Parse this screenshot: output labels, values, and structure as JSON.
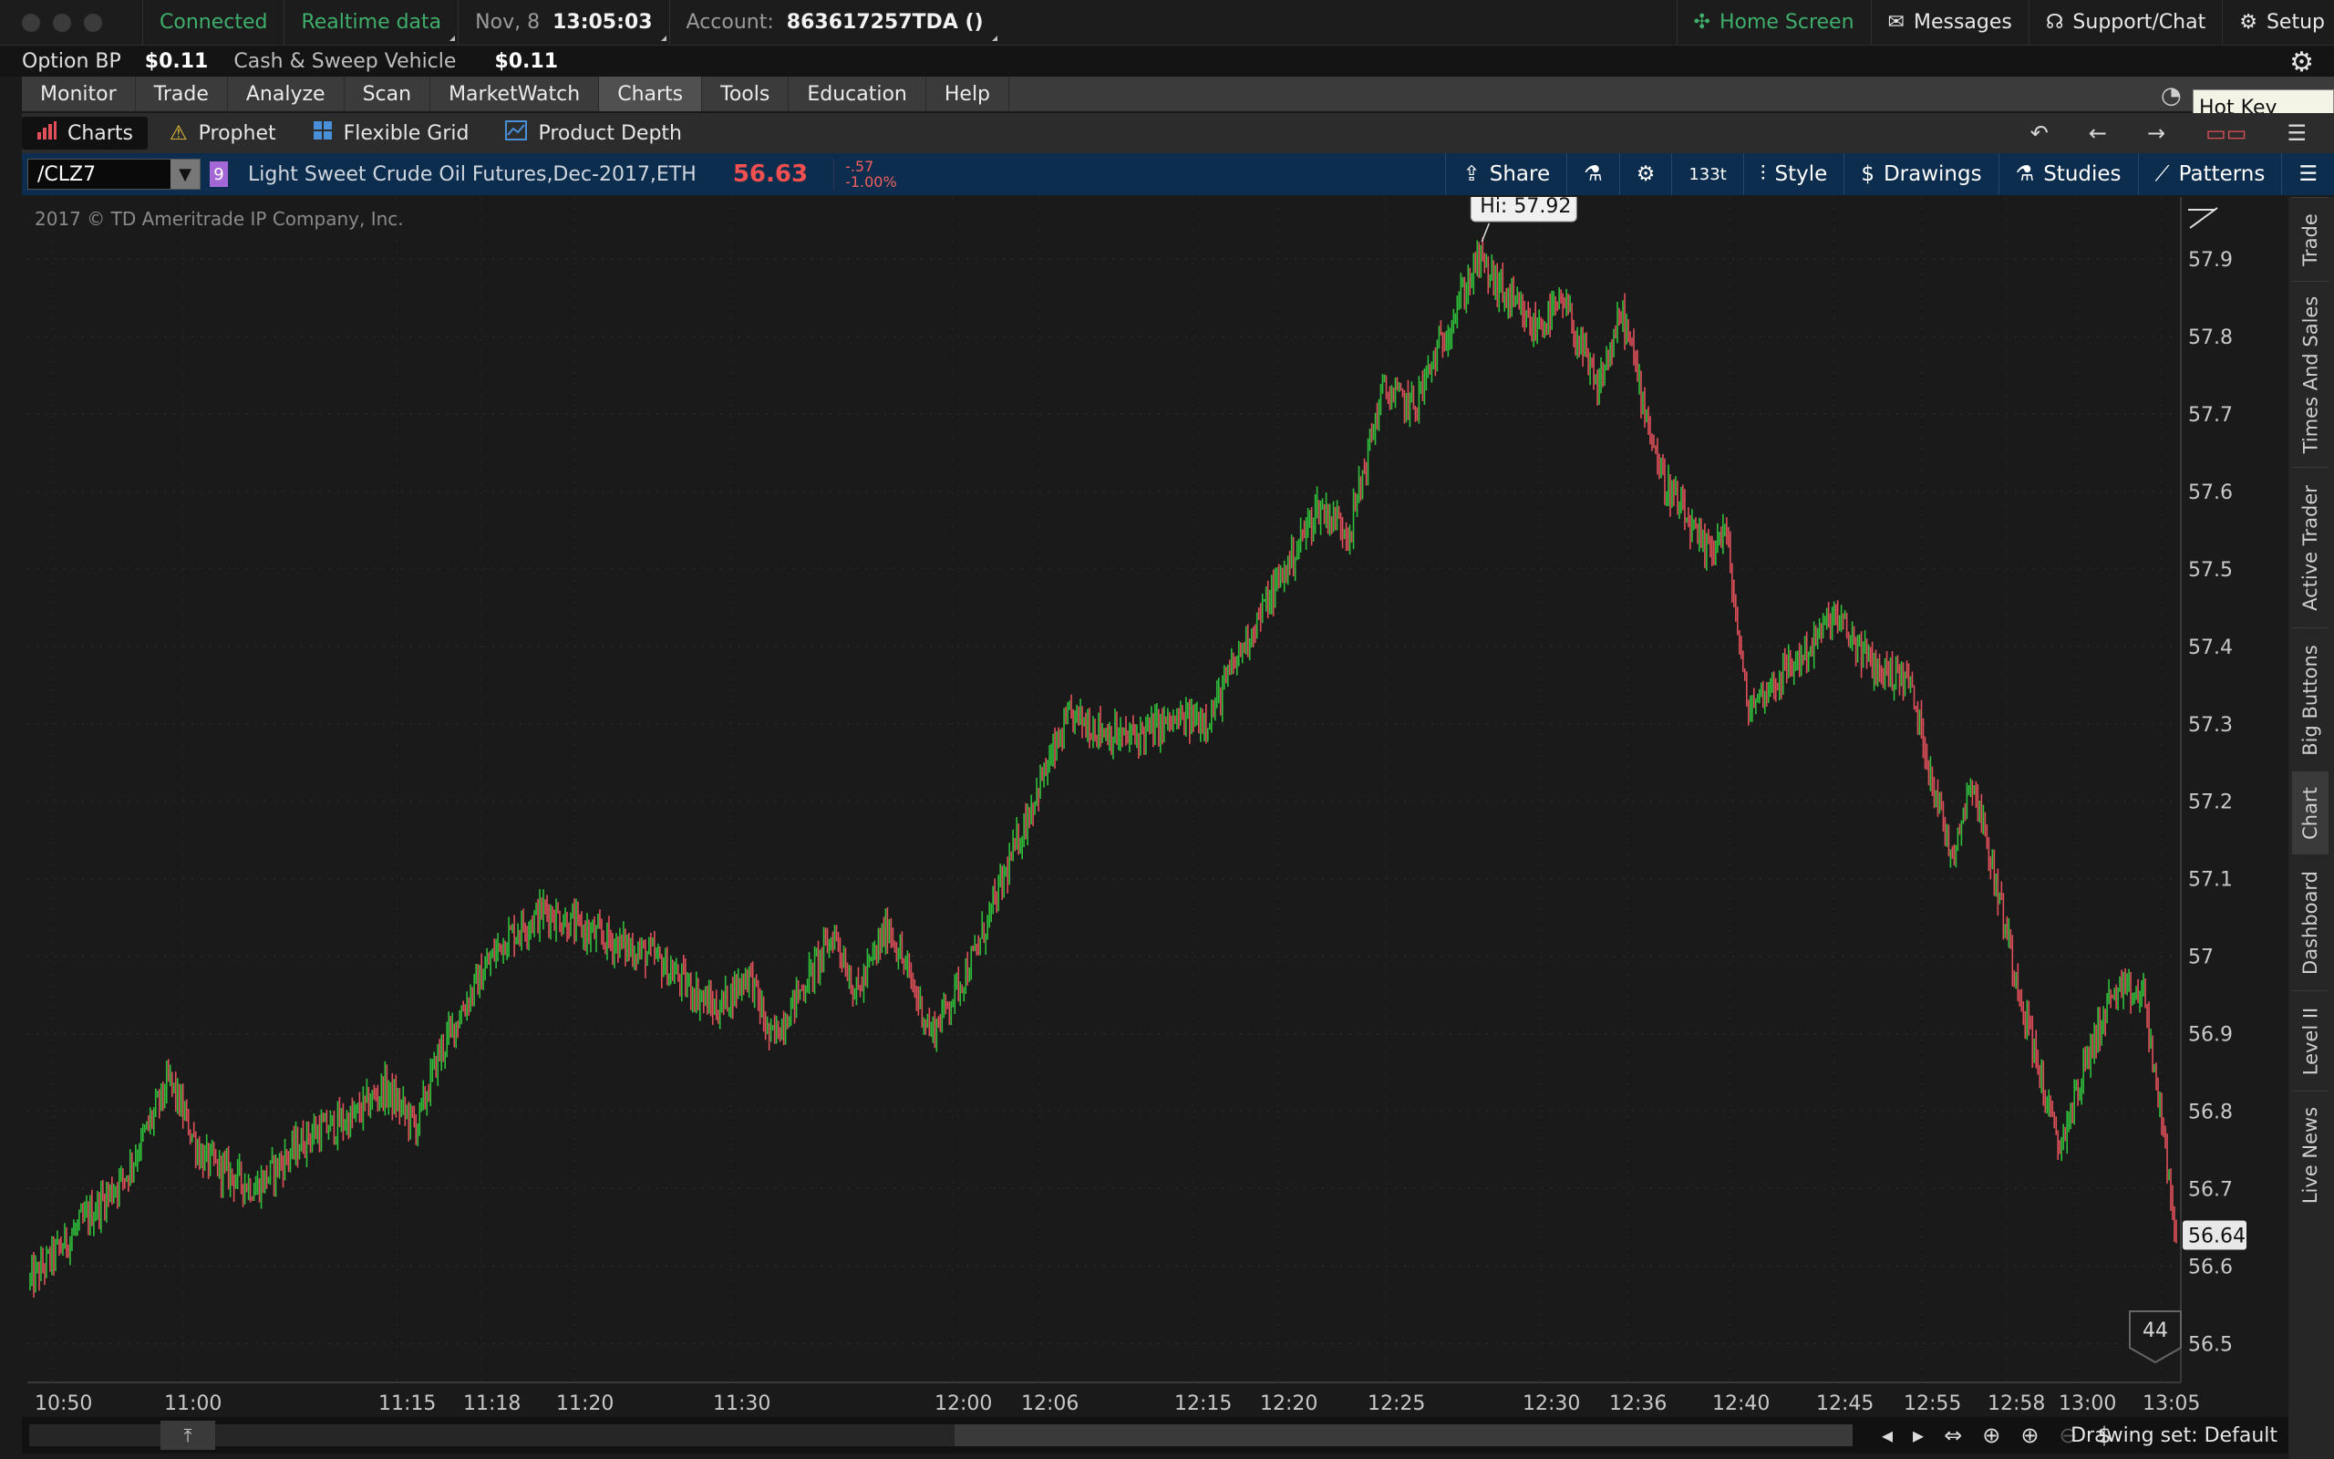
{
  "status_bar": {
    "connection": "Connected",
    "data_mode": "Realtime data",
    "date": "Nov, 8",
    "time": "13:05:03",
    "account_label": "Account:",
    "account_value": "863617257TDA ()",
    "right": [
      {
        "label": "Home Screen",
        "icon": "home-icon",
        "color": "#3fae6b"
      },
      {
        "label": "Messages",
        "icon": "envelope-icon"
      },
      {
        "label": "Support/Chat",
        "icon": "headset-icon"
      },
      {
        "label": "Setup",
        "icon": "gear-icon"
      }
    ]
  },
  "balances": {
    "option_bp_label": "Option BP",
    "option_bp_value": "$0.11",
    "cash_label": "Cash & Sweep Vehicle",
    "cash_value": "$0.11"
  },
  "main_menu": [
    "Monitor",
    "Trade",
    "Analyze",
    "Scan",
    "MarketWatch",
    "Charts",
    "Tools",
    "Education",
    "Help"
  ],
  "main_menu_active": "Charts",
  "tooltip": "Hot Key Setup",
  "sub_tabs": [
    {
      "label": "Charts",
      "icon": "bar-chart-icon",
      "active": true
    },
    {
      "label": "Prophet",
      "icon": "warning-triangle-icon"
    },
    {
      "label": "Flexible Grid",
      "icon": "grid-icon"
    },
    {
      "label": "Product Depth",
      "icon": "depth-chart-icon"
    }
  ],
  "chart_header": {
    "symbol": "/CLZ7",
    "link_badge": "9",
    "description": "Light Sweet Crude Oil Futures,Dec-2017,ETH",
    "last_price": "56.63",
    "net_change": "-.57",
    "pct_change": "-1.00%",
    "tools": [
      {
        "label": "Share",
        "icon": "share-icon"
      },
      {
        "label": "",
        "icon": "flask-icon"
      },
      {
        "label": "",
        "icon": "gear-icon"
      },
      {
        "label": "133t",
        "icon": "aggregation-icon"
      },
      {
        "label": "Style",
        "icon": "candle-icon"
      },
      {
        "label": "Drawings",
        "icon": "drawings-icon"
      },
      {
        "label": "Studies",
        "icon": "flask-icon"
      },
      {
        "label": "Patterns",
        "icon": "pattern-icon"
      }
    ]
  },
  "copyright": "2017 © TD Ameritrade IP Company, Inc.",
  "side_tabs": [
    "Trade",
    "Times And Sales",
    "Active Trader",
    "Big Buttons",
    "Chart",
    "Dashboard",
    "Level II",
    "Live News"
  ],
  "side_tab_active": "Chart",
  "bottom_bar": {
    "drawing_set": "Drawing set: Default"
  },
  "chart_data": {
    "type": "ohlc-bar",
    "instrument": "/CLZ7",
    "ylim": [
      56.45,
      57.98
    ],
    "y_ticks": [
      56.5,
      56.6,
      56.7,
      56.8,
      56.9,
      57,
      57.1,
      57.2,
      57.3,
      57.4,
      57.5,
      57.6,
      57.7,
      57.8,
      57.9
    ],
    "y_tick_labels": [
      "56.5",
      "56.6",
      "56.7",
      "56.8",
      "56.9",
      "57",
      "57.1",
      "57.2",
      "57.3",
      "57.4",
      "57.5",
      "57.6",
      "57.7",
      "57.8",
      "57.9"
    ],
    "x_ticks": [
      "10:50",
      "11:00",
      "11:15",
      "11:18",
      "11:20",
      "11:30",
      "12:00",
      "12:06",
      "12:15",
      "12:20",
      "12:25",
      "12:30",
      "12:36",
      "12:40",
      "12:45",
      "12:55",
      "12:58",
      "13:00",
      "13:05"
    ],
    "high_label": "Hi: 57.92",
    "high_value": 57.92,
    "last_label": "56.64",
    "last_value": 56.64,
    "bubble_count": "44",
    "grid": true,
    "up_color": "#2fbf3a",
    "down_color": "#e0505a",
    "price_path": [
      [
        0,
        56.58
      ],
      [
        0.045,
        56.72
      ],
      [
        0.065,
        56.84
      ],
      [
        0.08,
        56.74
      ],
      [
        0.105,
        56.7
      ],
      [
        0.13,
        56.77
      ],
      [
        0.15,
        56.79
      ],
      [
        0.165,
        56.83
      ],
      [
        0.18,
        56.78
      ],
      [
        0.19,
        56.87
      ],
      [
        0.205,
        56.95
      ],
      [
        0.22,
        57.02
      ],
      [
        0.24,
        57.06
      ],
      [
        0.26,
        57.03
      ],
      [
        0.29,
        57.0
      ],
      [
        0.32,
        56.93
      ],
      [
        0.335,
        56.98
      ],
      [
        0.345,
        56.89
      ],
      [
        0.375,
        57.03
      ],
      [
        0.385,
        56.95
      ],
      [
        0.4,
        57.04
      ],
      [
        0.42,
        56.9
      ],
      [
        0.44,
        57.0
      ],
      [
        0.47,
        57.22
      ],
      [
        0.485,
        57.31
      ],
      [
        0.51,
        57.28
      ],
      [
        0.53,
        57.3
      ],
      [
        0.55,
        57.31
      ],
      [
        0.565,
        57.4
      ],
      [
        0.585,
        57.5
      ],
      [
        0.6,
        57.58
      ],
      [
        0.615,
        57.55
      ],
      [
        0.63,
        57.73
      ],
      [
        0.645,
        57.71
      ],
      [
        0.665,
        57.84
      ],
      [
        0.675,
        57.9
      ],
      [
        0.685,
        57.86
      ],
      [
        0.7,
        57.81
      ],
      [
        0.715,
        57.84
      ],
      [
        0.73,
        57.73
      ],
      [
        0.742,
        57.83
      ],
      [
        0.76,
        57.62
      ],
      [
        0.78,
        57.52
      ],
      [
        0.79,
        57.55
      ],
      [
        0.8,
        57.32
      ],
      [
        0.83,
        57.4
      ],
      [
        0.84,
        57.44
      ],
      [
        0.86,
        57.37
      ],
      [
        0.875,
        57.36
      ],
      [
        0.895,
        57.13
      ],
      [
        0.905,
        57.23
      ],
      [
        0.925,
        56.98
      ],
      [
        0.945,
        56.75
      ],
      [
        0.96,
        56.88
      ],
      [
        0.97,
        56.95
      ],
      [
        0.985,
        56.95
      ],
      [
        1.0,
        56.64
      ]
    ]
  }
}
